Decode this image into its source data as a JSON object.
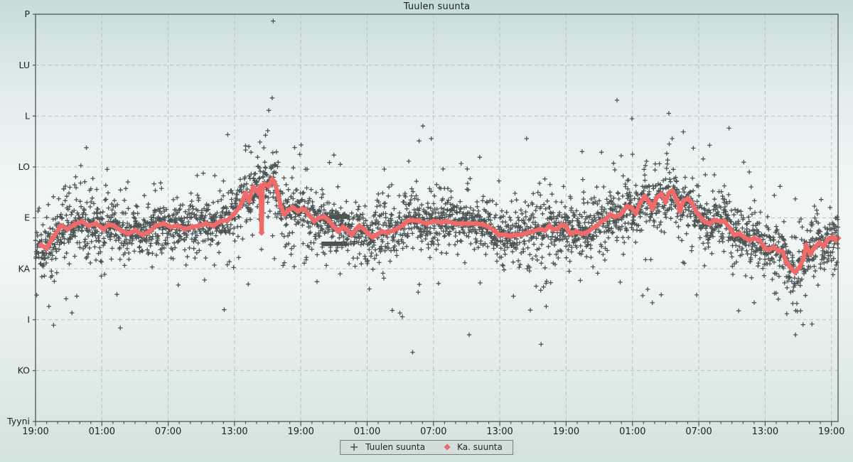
{
  "title": "Tuulen suunta",
  "legend": {
    "items": [
      {
        "marker": "plus",
        "label": "Tuulen suunta"
      },
      {
        "marker": "diamond",
        "label": "Ka. suunta"
      }
    ]
  },
  "colors": {
    "scatter": "#3f4545",
    "average_line": "#f06a6a",
    "grid": "#b9c0c0",
    "axis": "#4e5454",
    "text": "#1c2121",
    "legend_bg": "#d5dcdc",
    "legend_border": "#767d7d"
  },
  "chart_data": {
    "type": "scatter",
    "title": "Tuulen suunta",
    "legend_position": "bottom-center",
    "grid": "dashed",
    "y_axis": {
      "unit": "compass-direction-degrees",
      "range": [
        0,
        360
      ],
      "ticks": [
        {
          "label": "Tyyni",
          "deg": 0
        },
        {
          "label": "KO",
          "deg": 45
        },
        {
          "label": "I",
          "deg": 90
        },
        {
          "label": "KA",
          "deg": 135
        },
        {
          "label": "E",
          "deg": 180
        },
        {
          "label": "LO",
          "deg": 225
        },
        {
          "label": "L",
          "deg": 270
        },
        {
          "label": "LU",
          "deg": 315
        },
        {
          "label": "P",
          "deg": 360
        }
      ]
    },
    "x_axis": {
      "unit": "time-of-day",
      "total_hours": 72.6,
      "major_every_hours": 6,
      "minor_every_hours": 1,
      "labels": [
        "19:00",
        "01:00",
        "07:00",
        "13:00",
        "19:00",
        "01:00",
        "07:00",
        "13:00",
        "19:00",
        "01:00",
        "07:00",
        "13:00",
        "19:00"
      ]
    },
    "series": [
      {
        "name": "Tuulen suunta",
        "kind": "scatter-plus",
        "generated": {
          "count": 3600,
          "seed": 1337,
          "noise_mixture_weight_sigma_deg": [
            [
              0.55,
              9
            ],
            [
              0.27,
              17
            ],
            [
              0.13,
              27
            ],
            [
              0.05,
              40
            ]
          ],
          "clip_deg": [
            14,
            352
          ]
        },
        "outliers_h_deg": [
          [
            21.5,
            354
          ],
          [
            21.4,
            286
          ],
          [
            21.1,
            275
          ],
          [
            21.0,
            257
          ],
          [
            20.8,
            253
          ],
          [
            20.3,
            247
          ],
          [
            19.3,
            243
          ],
          [
            19.0,
            240
          ],
          [
            19.5,
            238
          ],
          [
            4.6,
            242
          ],
          [
            52.6,
            284
          ],
          [
            58.6,
            256
          ],
          [
            3.3,
            96
          ],
          [
            34.7,
            248
          ],
          [
            35.8,
            250
          ],
          [
            38.5,
            228
          ],
          [
            51.2,
            238
          ],
          [
            57.1,
            237
          ],
          [
            60.4,
            232
          ],
          [
            55.8,
            105
          ],
          [
            56.6,
            112
          ],
          [
            45.7,
            116
          ]
        ],
        "dense_segments": [
          {
            "h1": 25.9,
            "h2": 28.2,
            "deg": 157
          },
          {
            "h1": 26.6,
            "h2": 28.4,
            "deg": 181
          }
        ]
      },
      {
        "name": "Ka. suunta",
        "kind": "line-diamond",
        "points_h_deg": [
          [
            0.5,
            156
          ],
          [
            1.0,
            153
          ],
          [
            1.6,
            163
          ],
          [
            2.3,
            173
          ],
          [
            2.9,
            170
          ],
          [
            3.5,
            174
          ],
          [
            4.2,
            177
          ],
          [
            4.8,
            173
          ],
          [
            5.5,
            175
          ],
          [
            6.1,
            170
          ],
          [
            6.6,
            174
          ],
          [
            7.1,
            173
          ],
          [
            7.7,
            169
          ],
          [
            8.4,
            166
          ],
          [
            9.0,
            169
          ],
          [
            9.7,
            165
          ],
          [
            10.3,
            168
          ],
          [
            10.9,
            173
          ],
          [
            11.6,
            175
          ],
          [
            12.2,
            172
          ],
          [
            12.9,
            173
          ],
          [
            13.5,
            170
          ],
          [
            14.2,
            172
          ],
          [
            14.8,
            173
          ],
          [
            15.4,
            175
          ],
          [
            16.1,
            173
          ],
          [
            16.7,
            177
          ],
          [
            17.4,
            178
          ],
          [
            18.0,
            184
          ],
          [
            18.5,
            190
          ],
          [
            19.0,
            202
          ],
          [
            19.3,
            195
          ],
          [
            19.7,
            207
          ],
          [
            20.1,
            203
          ],
          [
            20.35,
            208
          ],
          [
            20.45,
            167
          ],
          [
            20.55,
            208
          ],
          [
            20.7,
            210
          ],
          [
            21.1,
            208
          ],
          [
            21.4,
            214
          ],
          [
            21.6,
            212
          ],
          [
            21.9,
            202
          ],
          [
            22.2,
            190
          ],
          [
            22.5,
            183
          ],
          [
            22.9,
            187
          ],
          [
            23.3,
            189
          ],
          [
            23.7,
            186
          ],
          [
            24.1,
            188
          ],
          [
            24.4,
            187
          ],
          [
            24.8,
            182
          ],
          [
            25.2,
            177
          ],
          [
            25.6,
            180
          ],
          [
            26.1,
            181
          ],
          [
            26.5,
            178
          ],
          [
            27.0,
            172
          ],
          [
            27.4,
            168
          ],
          [
            27.8,
            172
          ],
          [
            28.2,
            169
          ],
          [
            28.6,
            165
          ],
          [
            29.0,
            170
          ],
          [
            29.3,
            173
          ],
          [
            29.7,
            170
          ],
          [
            30.1,
            166
          ],
          [
            30.5,
            163
          ],
          [
            30.9,
            165
          ],
          [
            31.3,
            168
          ],
          [
            31.8,
            167
          ],
          [
            32.4,
            169
          ],
          [
            32.8,
            171
          ],
          [
            33.3,
            174
          ],
          [
            33.6,
            177
          ],
          [
            34.1,
            178
          ],
          [
            34.7,
            177
          ],
          [
            35.4,
            175
          ],
          [
            36.0,
            177
          ],
          [
            36.7,
            176
          ],
          [
            37.3,
            177
          ],
          [
            38.0,
            175
          ],
          [
            38.6,
            175
          ],
          [
            39.2,
            175
          ],
          [
            39.9,
            175
          ],
          [
            40.5,
            174
          ],
          [
            41.0,
            172
          ],
          [
            41.6,
            168
          ],
          [
            41.9,
            165
          ],
          [
            42.5,
            165
          ],
          [
            43.0,
            164
          ],
          [
            43.5,
            165
          ],
          [
            44.0,
            165
          ],
          [
            44.5,
            167
          ],
          [
            45.0,
            168
          ],
          [
            45.6,
            170
          ],
          [
            46.1,
            169
          ],
          [
            46.5,
            173
          ],
          [
            46.8,
            170
          ],
          [
            47.2,
            170
          ],
          [
            47.6,
            174
          ],
          [
            48.0,
            172
          ],
          [
            48.4,
            166
          ],
          [
            48.9,
            168
          ],
          [
            49.4,
            166
          ],
          [
            49.9,
            167
          ],
          [
            50.4,
            171
          ],
          [
            50.8,
            173
          ],
          [
            51.2,
            177
          ],
          [
            51.6,
            179
          ],
          [
            52.0,
            183
          ],
          [
            52.4,
            181
          ],
          [
            52.8,
            182
          ],
          [
            53.1,
            185
          ],
          [
            53.5,
            190
          ],
          [
            53.9,
            189
          ],
          [
            54.3,
            184
          ],
          [
            54.7,
            193
          ],
          [
            55.1,
            199
          ],
          [
            55.5,
            194
          ],
          [
            55.8,
            188
          ],
          [
            56.2,
            198
          ],
          [
            56.6,
            201
          ],
          [
            57.0,
            194
          ],
          [
            57.3,
            202
          ],
          [
            57.6,
            204
          ],
          [
            58.0,
            196
          ],
          [
            58.3,
            186
          ],
          [
            58.6,
            195
          ],
          [
            59.0,
            197
          ],
          [
            59.4,
            193
          ],
          [
            59.8,
            185
          ],
          [
            60.2,
            180
          ],
          [
            60.5,
            177
          ],
          [
            61.0,
            175
          ],
          [
            61.4,
            178
          ],
          [
            61.9,
            177
          ],
          [
            62.3,
            177
          ],
          [
            62.8,
            171
          ],
          [
            63.2,
            165
          ],
          [
            63.7,
            166
          ],
          [
            64.1,
            163
          ],
          [
            64.6,
            160
          ],
          [
            65.0,
            162
          ],
          [
            65.5,
            160
          ],
          [
            66.0,
            153
          ],
          [
            66.4,
            152
          ],
          [
            66.8,
            154
          ],
          [
            67.2,
            151
          ],
          [
            67.6,
            150
          ],
          [
            67.9,
            141
          ],
          [
            68.3,
            136
          ],
          [
            68.7,
            132
          ],
          [
            69.1,
            136
          ],
          [
            69.5,
            145
          ],
          [
            69.7,
            156
          ],
          [
            70.1,
            148
          ],
          [
            70.5,
            154
          ],
          [
            70.9,
            158
          ],
          [
            71.3,
            155
          ],
          [
            71.7,
            161
          ],
          [
            72.1,
            163
          ],
          [
            72.4,
            160
          ],
          [
            72.6,
            162
          ]
        ]
      }
    ]
  }
}
